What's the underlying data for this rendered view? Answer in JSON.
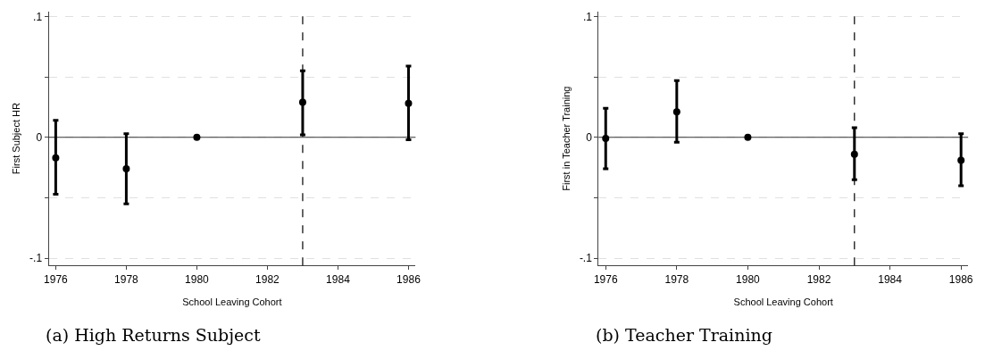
{
  "chart_data": [
    {
      "type": "scatter",
      "xlabel": "School Leaving Cohort",
      "ylabel": "First Subject HR",
      "annotations": [
        "(a) High Returns Subject"
      ],
      "x": [
        1976,
        1978,
        1980,
        1983,
        1986
      ],
      "series": [
        {
          "color": "#000000",
          "values": [
            -0.017,
            -0.026,
            0,
            0.029,
            0.028
          ],
          "errors": [
            [
              -0.047,
              0.014
            ],
            [
              -0.055,
              0.003
            ],
            null,
            [
              0.002,
              0.055
            ],
            [
              -0.002,
              0.059
            ]
          ]
        }
      ],
      "xlim": [
        1975.8,
        1986.2
      ],
      "ylim": [
        -0.106,
        0.104
      ],
      "xticks": [
        1976,
        1978,
        1980,
        1982,
        1984,
        1986
      ],
      "yticks": [
        {
          "value": -0.1,
          "label": "-.1"
        },
        {
          "value": -0.05,
          "label": null
        },
        0,
        {
          "value": 0.05,
          "label": null
        },
        {
          "value": 0.1,
          "label": ".1"
        }
      ],
      "grid": "y",
      "marker": "circle",
      "ref_lines": [
        {
          "axis": "y",
          "value": 0,
          "color": "#000000",
          "line_style": "solid"
        },
        {
          "axis": "x",
          "value": 1983,
          "color": "#000000",
          "line_style": "dashed"
        }
      ]
    },
    {
      "type": "scatter",
      "xlabel": "School Leaving Cohort",
      "ylabel": "First in Teacher Training",
      "annotations": [
        "(b) Teacher Training"
      ],
      "x": [
        1976,
        1978,
        1980,
        1983,
        1986
      ],
      "series": [
        {
          "color": "#000000",
          "values": [
            -0.001,
            0.021,
            0,
            -0.014,
            -0.019
          ],
          "errors": [
            [
              -0.026,
              0.024
            ],
            [
              -0.004,
              0.047
            ],
            null,
            [
              -0.035,
              0.008
            ],
            [
              -0.04,
              0.003
            ]
          ]
        }
      ],
      "xlim": [
        1975.8,
        1986.2
      ],
      "ylim": [
        -0.106,
        0.104
      ],
      "xticks": [
        1976,
        1978,
        1980,
        1982,
        1984,
        1986
      ],
      "yticks": [
        {
          "value": -0.1,
          "label": "-.1"
        },
        {
          "value": -0.05,
          "label": null
        },
        0,
        {
          "value": 0.05,
          "label": null
        },
        {
          "value": 0.1,
          "label": ".1"
        }
      ],
      "grid": "y",
      "marker": "circle",
      "ref_lines": [
        {
          "axis": "y",
          "value": 0,
          "color": "#000000",
          "line_style": "solid"
        },
        {
          "axis": "x",
          "value": 1983,
          "color": "#000000",
          "line_style": "dashed"
        }
      ]
    }
  ]
}
